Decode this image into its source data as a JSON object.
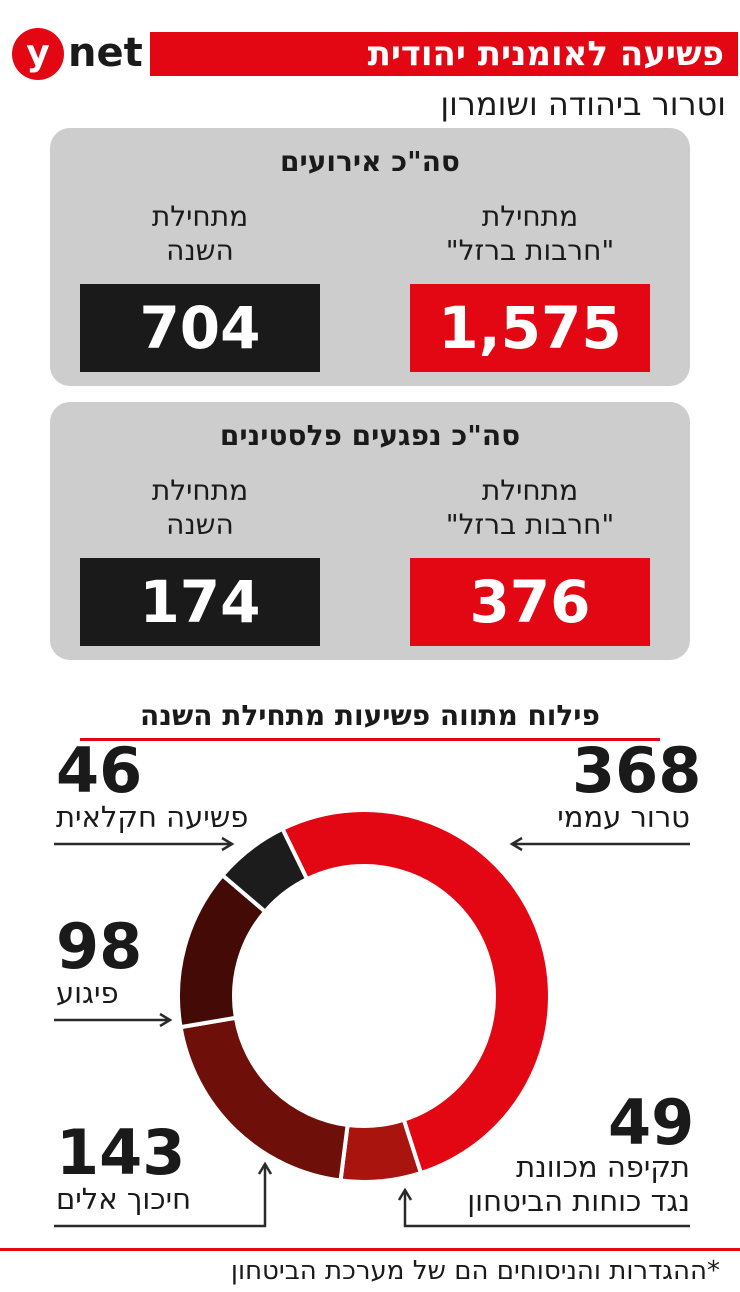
{
  "header": {
    "logo_letter": "y",
    "logo_text": "net",
    "title": "פשיעה לאומנית יהודית",
    "subtitle": "וטרור ביהודה ושומרון"
  },
  "panels": {
    "events": {
      "heading": "סה\"כ אירועים",
      "right_label_line1": "מתחילת",
      "right_label_line2": "\"חרבות ברזל\"",
      "right_value": "1,575",
      "left_label_line1": "מתחילת",
      "left_label_line2": "השנה",
      "left_value": "704"
    },
    "injured": {
      "heading": "סה\"כ נפגעים פלסטינים",
      "right_label_line1": "מתחילת",
      "right_label_line2": "\"חרבות ברזל\"",
      "right_value": "376",
      "left_label_line1": "מתחילת",
      "left_label_line2": "השנה",
      "left_value": "174"
    }
  },
  "colors": {
    "accent_red": "#e30613",
    "panel_gray": "#cdcdcd",
    "black_box": "#1a1a1a"
  },
  "chart_data": {
    "type": "pie",
    "title": "פילוח מתווה פשיעות מתחילת השנה",
    "categories": [
      "טרור עממי",
      "תקיפה מכוונת נגד כוחות הביטחון",
      "חיכוך אלים",
      "פיגוע",
      "פשיעה חקלאית"
    ],
    "values": [
      368,
      49,
      143,
      98,
      46
    ],
    "display_values": [
      "368",
      "49",
      "143",
      "98",
      "46"
    ],
    "label_lines": {
      "attack_line1": "תקיפה מכוונת",
      "attack_line2": "נגד כוחות הביטחון"
    },
    "colors": [
      "#e30613",
      "#a9140f",
      "#6e1009",
      "#430a06",
      "#1c1c1c"
    ],
    "donut": true
  },
  "footnote": "*ההגדרות והניסוחים הם של מערכת הביטחון"
}
